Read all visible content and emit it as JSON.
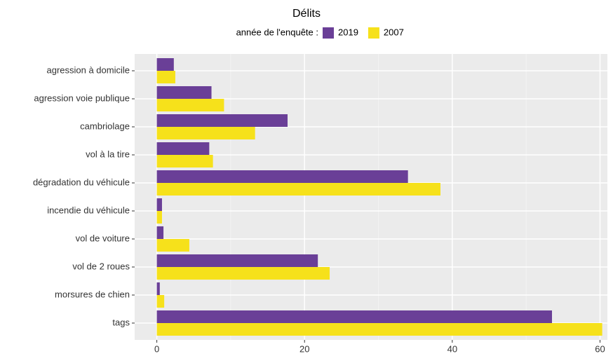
{
  "chart_data": {
    "type": "barh",
    "title": "Délits",
    "legend_title": "année de l'enquête :",
    "categories": [
      "agression à domicile",
      "agression voie publique",
      "cambriolage",
      "vol à la tire",
      "dégradation du véhicule",
      "incendie du véhicule",
      "vol de voiture",
      "vol de 2 roues",
      "morsures de chien",
      "tags"
    ],
    "series": [
      {
        "name": "2019",
        "color": "#6a3f97",
        "values": [
          2.3,
          7.4,
          17.7,
          7.1,
          34.0,
          0.7,
          0.9,
          21.8,
          0.4,
          53.5
        ]
      },
      {
        "name": "2007",
        "color": "#f6e11b",
        "values": [
          2.5,
          9.1,
          13.3,
          7.6,
          38.4,
          0.7,
          4.4,
          23.4,
          1.0,
          60.3
        ]
      }
    ],
    "xlim": [
      -3,
      61
    ],
    "xticks": [
      0,
      20,
      40,
      60
    ],
    "minor_grid": [
      10,
      30,
      50
    ],
    "grid": true,
    "legend": "top"
  }
}
